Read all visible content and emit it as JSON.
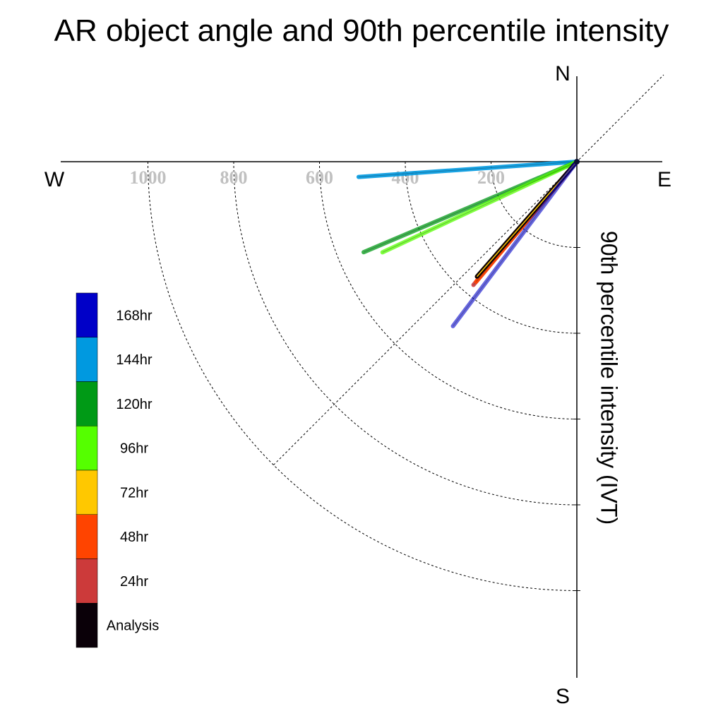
{
  "chart_data": {
    "type": "polar-vector",
    "title": "AR object angle and 90th percentile intensity",
    "radial_label": "90th percentile intensity (IVT)",
    "compass": {
      "north": "N",
      "south": "S",
      "east": "E",
      "west": "W"
    },
    "radial_ticks": [
      200,
      400,
      600,
      800,
      1000
    ],
    "radial_tick_labels": [
      "200",
      "400",
      "600",
      "800",
      "1000"
    ],
    "rlim": [
      0,
      1200
    ],
    "grid": true,
    "legend_position": "left",
    "legend": [
      {
        "label": "168hr",
        "color": "#0000c8"
      },
      {
        "label": "144hr",
        "color": "#0099e0"
      },
      {
        "label": "120hr",
        "color": "#009a16"
      },
      {
        "label": "96hr",
        "color": "#55ff00"
      },
      {
        "label": "72hr",
        "color": "#ffc800"
      },
      {
        "label": "48hr",
        "color": "#ff4400"
      },
      {
        "label": "24hr",
        "color": "#cc3a3a"
      },
      {
        "label": "Analysis",
        "color": "#0a0008"
      }
    ],
    "series": [
      {
        "name": "144hr",
        "color": "#0099e0",
        "angle_deg": 266,
        "intensity": 510,
        "ring_opacity": 0.9
      },
      {
        "name": "120hr",
        "color": "#009a16",
        "angle_deg": 247,
        "intensity": 540,
        "ring_opacity": 0.75
      },
      {
        "name": "96hr",
        "color": "#55ff00",
        "angle_deg": 245,
        "intensity": 500,
        "ring_opacity": 0.75
      },
      {
        "name": "24hr",
        "color": "#cc3a3a",
        "angle_deg": 220,
        "intensity": 375,
        "ring_opacity": 0.9
      },
      {
        "name": "48hr",
        "color": "#ff4400",
        "angle_deg": 220,
        "intensity": 365,
        "ring_opacity": 0.9
      },
      {
        "name": "72hr",
        "color": "#ffc800",
        "angle_deg": 221,
        "intensity": 355,
        "ring_opacity": 0.9
      },
      {
        "name": "Analysis",
        "color": "#0a0008",
        "angle_deg": 221,
        "intensity": 355,
        "ring_opacity": 1.0
      },
      {
        "name": "168hr",
        "color": "#0000c8",
        "angle_deg": 217,
        "intensity": 480,
        "ring_opacity": 0.6
      }
    ]
  }
}
